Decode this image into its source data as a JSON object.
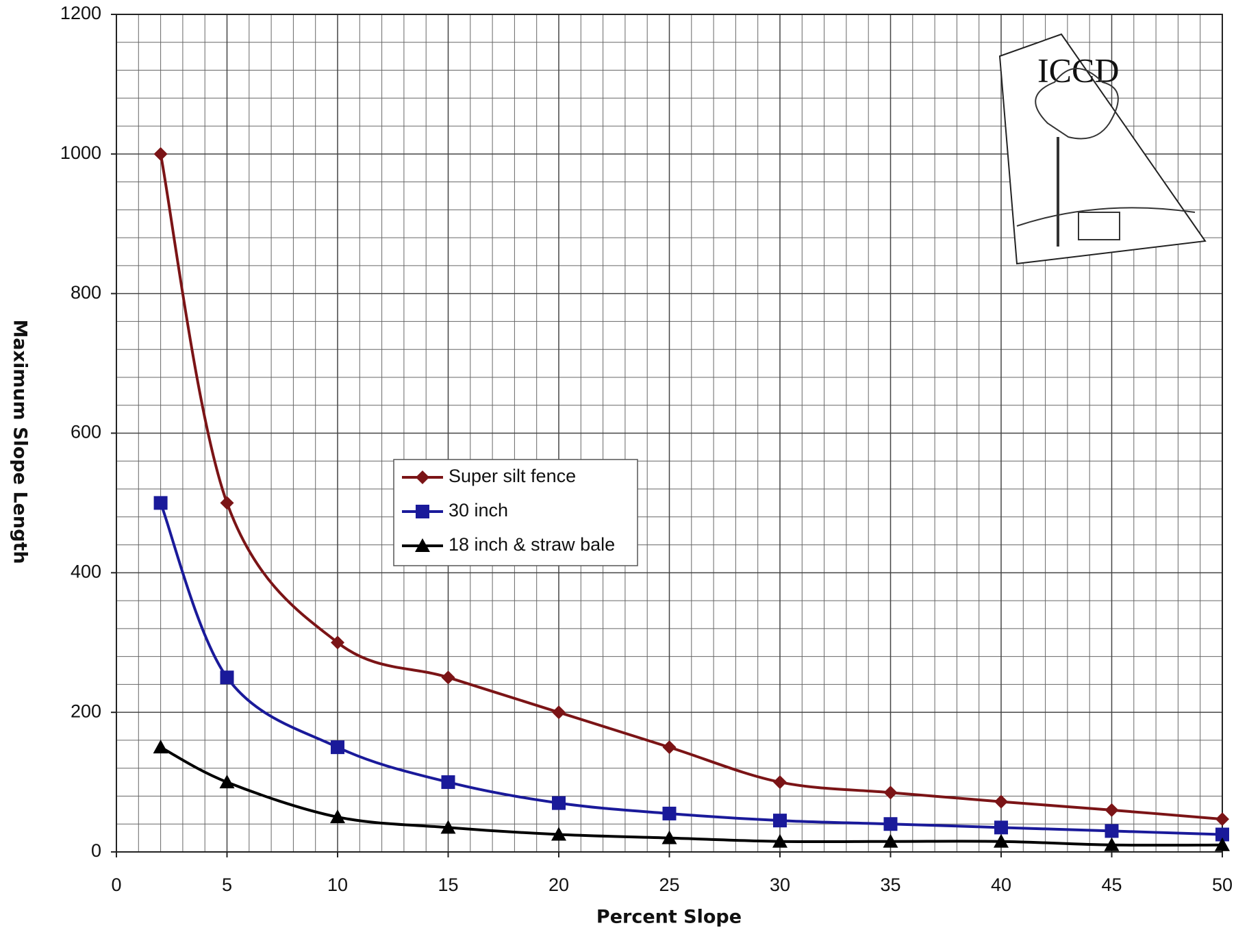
{
  "chart_data": {
    "type": "line",
    "x_label": "Percent Slope",
    "y_label": "Maximum Slope Length",
    "x": [
      2,
      5,
      10,
      15,
      20,
      25,
      30,
      35,
      40,
      45,
      50
    ],
    "series": [
      {
        "name": "Super silt fence",
        "color": "#7b1416",
        "marker": "diamond",
        "values": [
          1000,
          500,
          300,
          250,
          200,
          150,
          100,
          85,
          72,
          60,
          47
        ]
      },
      {
        "name": "30 inch",
        "color": "#1a1a9a",
        "marker": "square",
        "values": [
          500,
          250,
          150,
          100,
          70,
          55,
          45,
          40,
          35,
          30,
          25
        ]
      },
      {
        "name": "18 inch & straw bale",
        "color": "#000000",
        "marker": "triangle",
        "values": [
          150,
          100,
          50,
          35,
          25,
          20,
          15,
          15,
          15,
          10,
          10
        ]
      }
    ],
    "xlim": [
      0,
      50
    ],
    "xticks": [
      0,
      5,
      10,
      15,
      20,
      25,
      30,
      35,
      40,
      45,
      50
    ],
    "ylim": [
      0,
      1200
    ],
    "yticks": [
      0,
      200,
      400,
      600,
      800,
      1000,
      1200
    ],
    "grid": true,
    "smooth": true,
    "legend": "center",
    "logo_text": "ICCD"
  }
}
